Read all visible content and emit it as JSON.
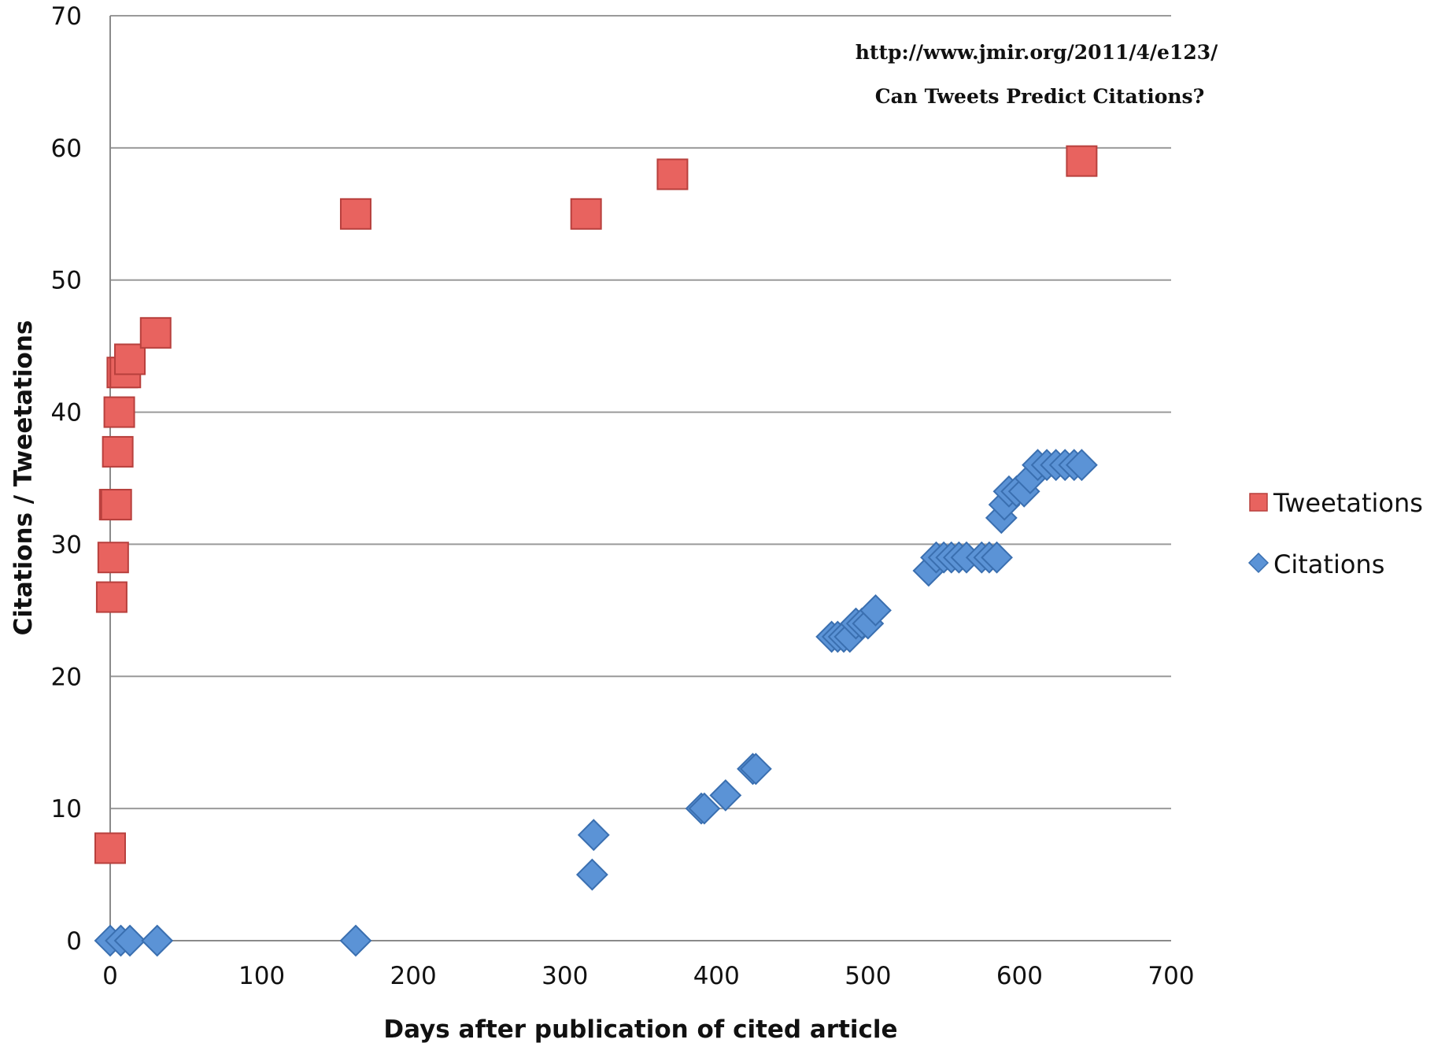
{
  "chart_data": {
    "type": "scatter",
    "title": "",
    "xlabel": "Days after publication of cited article",
    "ylabel": "Citations / Tweetations",
    "xlim": [
      0,
      700
    ],
    "ylim": [
      0,
      70
    ],
    "xticks": [
      0,
      100,
      200,
      300,
      400,
      500,
      600,
      700
    ],
    "yticks": [
      0,
      10,
      20,
      30,
      40,
      50,
      60,
      70
    ],
    "grid": "horizontal",
    "legend_position": "right",
    "annotations": [
      "http://www.jmir.org/2011/4/e123/",
      "Can Tweets Predict Citations?"
    ],
    "series": [
      {
        "name": "Tweetations",
        "marker": "square",
        "color": "#e8635f",
        "points": [
          [
            0,
            7
          ],
          [
            1,
            26
          ],
          [
            2,
            29
          ],
          [
            3,
            33
          ],
          [
            4,
            33
          ],
          [
            5,
            37
          ],
          [
            6,
            40
          ],
          [
            8,
            43
          ],
          [
            10,
            43
          ],
          [
            13,
            44
          ],
          [
            30,
            46
          ],
          [
            162,
            55
          ],
          [
            314,
            55
          ],
          [
            371,
            58
          ],
          [
            641,
            59
          ]
        ]
      },
      {
        "name": "Citations",
        "marker": "diamond",
        "color": "#5b93d6",
        "points": [
          [
            0,
            0
          ],
          [
            7,
            0
          ],
          [
            13,
            0
          ],
          [
            31,
            0
          ],
          [
            162,
            0
          ],
          [
            318,
            5
          ],
          [
            319,
            8
          ],
          [
            390,
            10
          ],
          [
            392,
            10
          ],
          [
            406,
            11
          ],
          [
            424,
            13
          ],
          [
            426,
            13
          ],
          [
            476,
            23
          ],
          [
            480,
            23
          ],
          [
            484,
            23
          ],
          [
            488,
            23
          ],
          [
            492,
            24
          ],
          [
            496,
            24
          ],
          [
            500,
            24
          ],
          [
            505,
            25
          ],
          [
            540,
            28
          ],
          [
            545,
            29
          ],
          [
            550,
            29
          ],
          [
            555,
            29
          ],
          [
            560,
            29
          ],
          [
            565,
            29
          ],
          [
            575,
            29
          ],
          [
            580,
            29
          ],
          [
            585,
            29
          ],
          [
            588,
            32
          ],
          [
            590,
            33
          ],
          [
            593,
            34
          ],
          [
            598,
            34
          ],
          [
            603,
            34
          ],
          [
            607,
            35
          ],
          [
            612,
            36
          ],
          [
            618,
            36
          ],
          [
            624,
            36
          ],
          [
            630,
            36
          ],
          [
            636,
            36
          ],
          [
            641,
            36
          ]
        ]
      }
    ]
  }
}
